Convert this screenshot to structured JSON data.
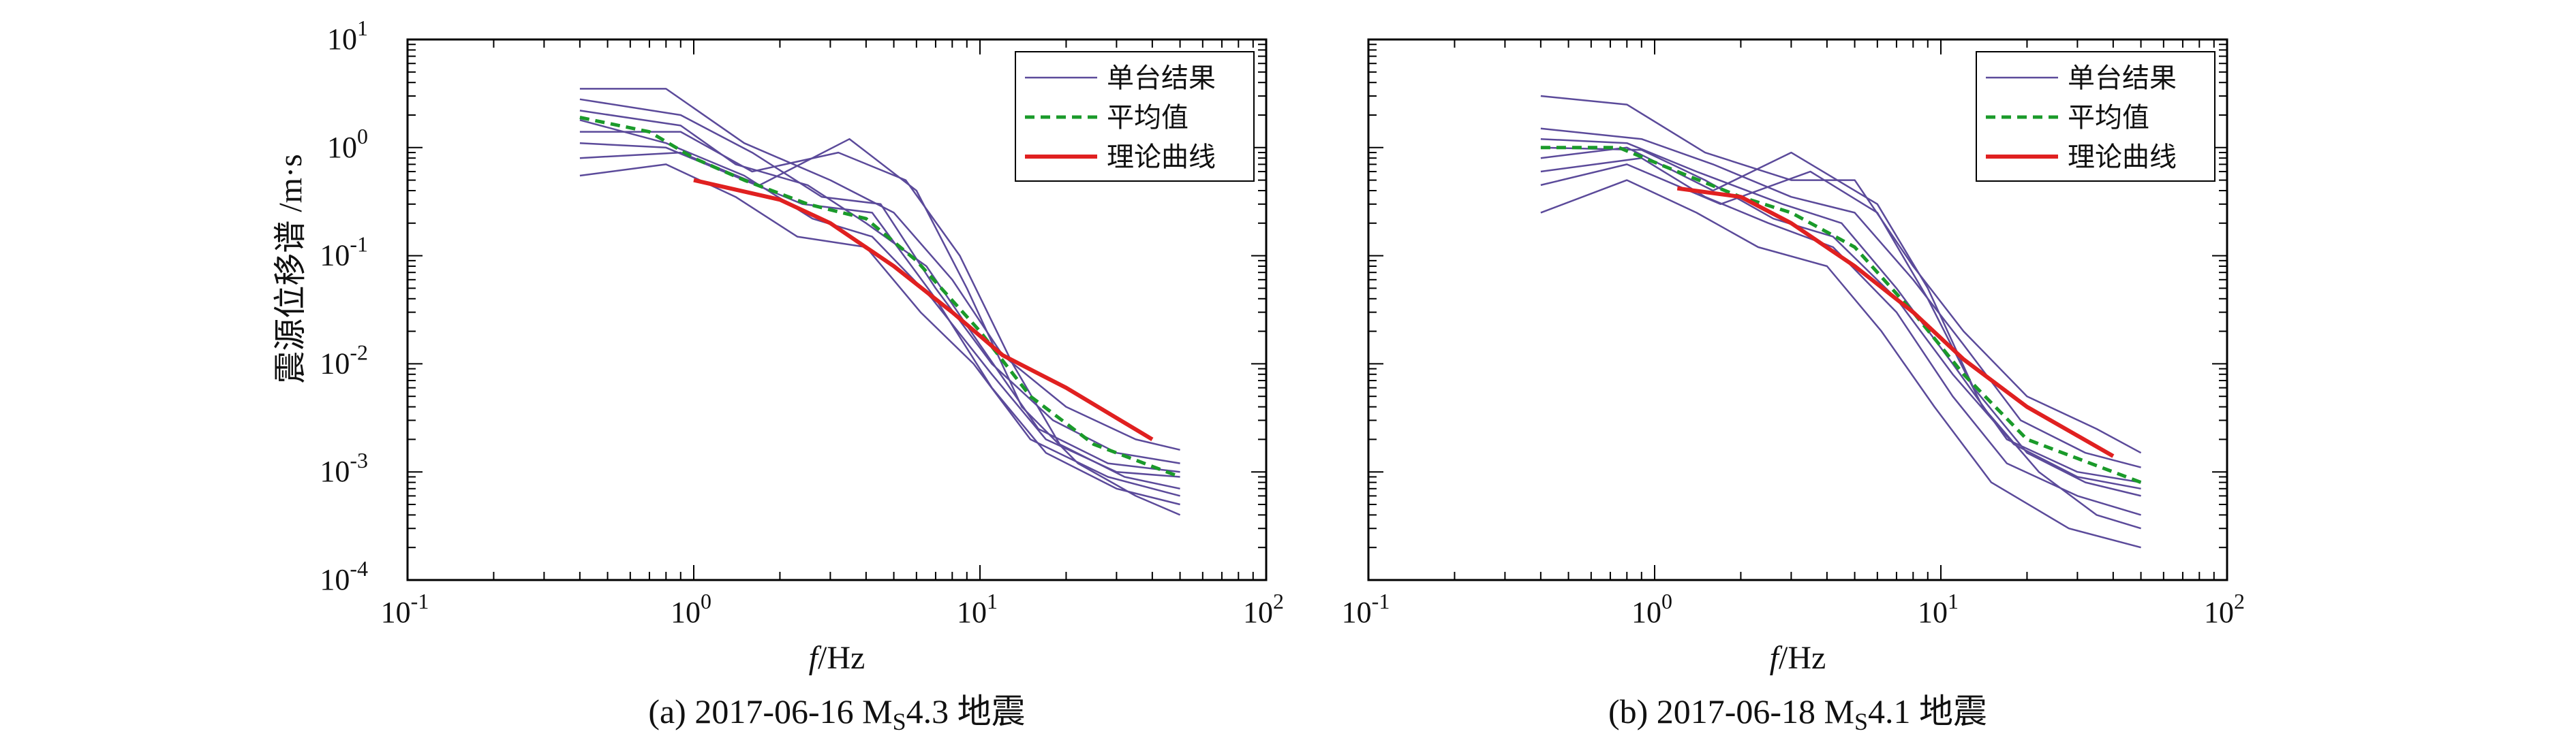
{
  "colors": {
    "single": "#5b4a9a",
    "mean": "#1a9a2a",
    "theory": "#e02020",
    "axis": "#000000"
  },
  "ylabel": "震源位移谱 /m·s",
  "chart_data": [
    {
      "type": "line",
      "scale": "log-log",
      "caption": "(a) 2017-06-16 MS4.3 地震",
      "caption_parts": {
        "prefix": "(a) 2017-06-16 M",
        "subscript": "S",
        "suffix": "4.3 地震"
      },
      "xlabel": "f/Hz",
      "ylabel": "震源位移谱 /m·s",
      "xlim": [
        0.1,
        100
      ],
      "ylim": [
        0.0001,
        10
      ],
      "xticks": [
        0.1,
        1,
        10,
        100
      ],
      "yticks": [
        0.0001,
        0.001,
        0.01,
        0.1,
        1,
        10
      ],
      "legend": {
        "position": "top-right",
        "entries": [
          {
            "label": "单台结果",
            "style": "single"
          },
          {
            "label": "平均值",
            "style": "mean"
          },
          {
            "label": "理论曲线",
            "style": "theory"
          }
        ]
      },
      "series": [
        {
          "name": "单台结果",
          "x": [
            0.4,
            0.8,
            1.5,
            3,
            5,
            8,
            12,
            20,
            35,
            50
          ],
          "y": [
            3.5,
            3.5,
            1.1,
            0.5,
            0.25,
            0.06,
            0.012,
            0.004,
            0.002,
            0.0016
          ]
        },
        {
          "name": "单台结果",
          "x": [
            0.4,
            0.9,
            1.6,
            2.8,
            4.5,
            7,
            11,
            18,
            30,
            50
          ],
          "y": [
            2.8,
            2.0,
            0.9,
            0.35,
            0.3,
            0.05,
            0.01,
            0.003,
            0.0015,
            0.0012
          ]
        },
        {
          "name": "单台结果",
          "x": [
            0.4,
            0.9,
            1.4,
            2.5,
            4,
            6.5,
            10,
            16,
            28,
            50
          ],
          "y": [
            2.2,
            1.6,
            0.7,
            0.45,
            0.2,
            0.08,
            0.015,
            0.0025,
            0.0012,
            0.001
          ]
        },
        {
          "name": "单台结果",
          "x": [
            0.4,
            0.8,
            1.5,
            2.6,
            4.2,
            6.8,
            11,
            17,
            30,
            50
          ],
          "y": [
            1.8,
            1.1,
            0.55,
            0.22,
            0.15,
            0.04,
            0.008,
            0.002,
            0.001,
            0.0009
          ]
        },
        {
          "name": "单台结果",
          "x": [
            0.4,
            0.9,
            1.6,
            3.2,
            5.5,
            8.5,
            13,
            19,
            32,
            50
          ],
          "y": [
            1.4,
            1.4,
            0.6,
            0.9,
            0.5,
            0.1,
            0.01,
            0.0018,
            0.0009,
            0.0007
          ]
        },
        {
          "name": "单台结果",
          "x": [
            0.4,
            0.8,
            1.5,
            2.4,
            4.2,
            7,
            11,
            17,
            30,
            50
          ],
          "y": [
            1.1,
            1.0,
            0.5,
            0.3,
            0.25,
            0.04,
            0.006,
            0.0015,
            0.0007,
            0.0005
          ]
        },
        {
          "name": "单台结果",
          "x": [
            0.4,
            0.9,
            1.7,
            3.5,
            6,
            9,
            14,
            22,
            35,
            50
          ],
          "y": [
            0.8,
            0.9,
            0.45,
            1.2,
            0.4,
            0.05,
            0.004,
            0.0012,
            0.0006,
            0.0004
          ]
        },
        {
          "name": "单台结果",
          "x": [
            0.4,
            0.8,
            1.4,
            2.3,
            4,
            6.2,
            9.5,
            15,
            28,
            50
          ],
          "y": [
            0.55,
            0.7,
            0.35,
            0.15,
            0.12,
            0.03,
            0.01,
            0.002,
            0.0009,
            0.0006
          ]
        },
        {
          "name": "平均值",
          "x": [
            0.4,
            0.7,
            1,
            1.5,
            2.5,
            4,
            6,
            10,
            15,
            25,
            50
          ],
          "y": [
            1.9,
            1.4,
            0.8,
            0.5,
            0.3,
            0.22,
            0.09,
            0.02,
            0.005,
            0.0018,
            0.0009
          ]
        },
        {
          "name": "理论曲线",
          "x": [
            1.0,
            2,
            3,
            5,
            8,
            12,
            20,
            40
          ],
          "y": [
            0.5,
            0.33,
            0.2,
            0.08,
            0.03,
            0.012,
            0.006,
            0.002
          ]
        }
      ]
    },
    {
      "type": "line",
      "scale": "log-log",
      "caption": "(b) 2017-06-18 MS4.1 地震",
      "caption_parts": {
        "prefix": "(b) 2017-06-18 M",
        "subscript": "S",
        "suffix": "4.1 地震"
      },
      "xlabel": "f/Hz",
      "xlim": [
        0.1,
        100
      ],
      "ylim": [
        0.0001,
        10
      ],
      "xticks": [
        0.1,
        1,
        10,
        100
      ],
      "yticks": [
        0.0001,
        0.001,
        0.01,
        0.1,
        1,
        10
      ],
      "legend": {
        "position": "top-right",
        "entries": [
          {
            "label": "单台结果",
            "style": "single"
          },
          {
            "label": "平均值",
            "style": "mean"
          },
          {
            "label": "理论曲线",
            "style": "theory"
          }
        ]
      },
      "series": [
        {
          "name": "单台结果",
          "x": [
            0.4,
            0.8,
            1.5,
            3,
            5,
            8,
            12,
            20,
            35,
            50
          ],
          "y": [
            3.0,
            2.5,
            0.9,
            0.5,
            0.5,
            0.08,
            0.02,
            0.005,
            0.0025,
            0.0015
          ]
        },
        {
          "name": "单台结果",
          "x": [
            0.4,
            0.9,
            1.6,
            3,
            5,
            8,
            12,
            19,
            32,
            50
          ],
          "y": [
            1.5,
            1.2,
            0.7,
            0.35,
            0.25,
            0.06,
            0.015,
            0.003,
            0.0015,
            0.0011
          ]
        },
        {
          "name": "单台结果",
          "x": [
            0.4,
            0.8,
            1.4,
            2.8,
            4.5,
            7,
            11,
            17,
            30,
            50
          ],
          "y": [
            1.2,
            1.1,
            0.6,
            0.3,
            0.2,
            0.05,
            0.01,
            0.002,
            0.001,
            0.0008
          ]
        },
        {
          "name": "单台结果",
          "x": [
            0.4,
            0.9,
            1.5,
            2.6,
            4.2,
            7,
            11,
            18,
            30,
            50
          ],
          "y": [
            1.0,
            0.95,
            0.5,
            0.22,
            0.15,
            0.04,
            0.008,
            0.0018,
            0.0009,
            0.0007
          ]
        },
        {
          "name": "单台结果",
          "x": [
            0.4,
            0.8,
            1.6,
            3,
            6,
            9,
            13,
            20,
            32,
            50
          ],
          "y": [
            0.8,
            1.0,
            0.4,
            0.9,
            0.3,
            0.05,
            0.006,
            0.0015,
            0.0008,
            0.0006
          ]
        },
        {
          "name": "单台结果",
          "x": [
            0.4,
            0.9,
            1.5,
            2.5,
            4.2,
            7,
            11,
            17,
            30,
            50
          ],
          "y": [
            0.6,
            0.8,
            0.35,
            0.2,
            0.12,
            0.03,
            0.005,
            0.0012,
            0.0006,
            0.0004
          ]
        },
        {
          "name": "单台结果",
          "x": [
            0.4,
            0.8,
            1.7,
            3.5,
            6,
            9,
            14,
            22,
            35,
            50
          ],
          "y": [
            0.45,
            0.7,
            0.3,
            0.6,
            0.25,
            0.04,
            0.004,
            0.001,
            0.0004,
            0.0003
          ]
        },
        {
          "name": "单台结果",
          "x": [
            0.4,
            0.8,
            1.4,
            2.3,
            4,
            6.2,
            9.5,
            15,
            28,
            50
          ],
          "y": [
            0.25,
            0.5,
            0.25,
            0.12,
            0.08,
            0.02,
            0.004,
            0.0008,
            0.0003,
            0.0002
          ]
        },
        {
          "name": "平均值",
          "x": [
            0.4,
            0.75,
            1.2,
            2,
            3,
            5,
            8,
            12,
            20,
            50
          ],
          "y": [
            1.0,
            1.0,
            0.6,
            0.35,
            0.25,
            0.12,
            0.03,
            0.008,
            0.002,
            0.0008
          ]
        },
        {
          "name": "理论曲线",
          "x": [
            1.2,
            2,
            3,
            5,
            8,
            12,
            20,
            40
          ],
          "y": [
            0.42,
            0.35,
            0.2,
            0.08,
            0.03,
            0.011,
            0.004,
            0.0014
          ]
        }
      ]
    }
  ]
}
